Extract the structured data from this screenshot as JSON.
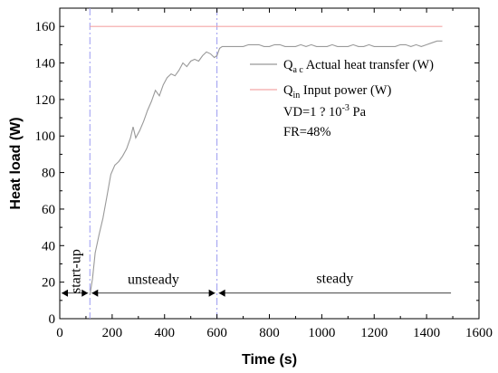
{
  "chart_data": {
    "type": "line",
    "xlabel": "Time (s)",
    "ylabel": "Heat load (W)",
    "xlim": [
      0,
      1600
    ],
    "ylim": [
      0,
      170
    ],
    "x_ticks": [
      0,
      200,
      400,
      600,
      800,
      1000,
      1200,
      1400,
      1600
    ],
    "y_ticks": [
      0,
      20,
      40,
      60,
      80,
      100,
      120,
      140,
      160
    ],
    "grid": false,
    "legend_position": "top-right",
    "series": [
      {
        "name": "Q_ac Actual heat transfer (W)",
        "color": "#999999",
        "x": [
          115,
          125,
          135,
          150,
          165,
          180,
          195,
          210,
          225,
          240,
          255,
          270,
          280,
          290,
          305,
          320,
          335,
          350,
          365,
          380,
          395,
          410,
          425,
          440,
          455,
          470,
          485,
          500,
          515,
          530,
          545,
          560,
          575,
          590,
          600,
          610,
          620,
          640,
          660,
          680,
          700,
          720,
          740,
          760,
          780,
          800,
          820,
          840,
          860,
          880,
          900,
          920,
          940,
          960,
          980,
          1000,
          1020,
          1040,
          1060,
          1080,
          1100,
          1120,
          1140,
          1160,
          1180,
          1200,
          1220,
          1240,
          1260,
          1280,
          1300,
          1320,
          1340,
          1360,
          1380,
          1400,
          1420,
          1440,
          1460
        ],
        "y": [
          13,
          22,
          36,
          46,
          55,
          67,
          79,
          84,
          86,
          89,
          93,
          99,
          105,
          99,
          103,
          108,
          114,
          119,
          125,
          122,
          128,
          132,
          134,
          133,
          136,
          140,
          138,
          141,
          142,
          141,
          144,
          146,
          145,
          143,
          144,
          148,
          149,
          149,
          149,
          149,
          149,
          150,
          150,
          150,
          149,
          149,
          150,
          150,
          149,
          149,
          149,
          150,
          149,
          150,
          149,
          149,
          149,
          150,
          149,
          149,
          149,
          150,
          149,
          149,
          150,
          149,
          149,
          149,
          149,
          149,
          150,
          150,
          149,
          150,
          149,
          150,
          151,
          152,
          152
        ]
      },
      {
        "name": "Q_in Input power (W)",
        "color": "#f4a6a6",
        "x": [
          115,
          1460
        ],
        "y": [
          160,
          160
        ]
      }
    ],
    "legend": {
      "actual": {
        "symbol": "Q",
        "sub": "a c",
        "text": " Actual heat transfer (W)"
      },
      "input": {
        "symbol": "Q",
        "sub": "in",
        "text": " Input power (W)"
      }
    },
    "annotations": {
      "vd_prefix": "VD=1 ? 10",
      "vd_exp": "-3",
      "vd_unit": " Pa",
      "fr": "FR=48%"
    },
    "phase_boundaries_x": [
      115,
      600
    ],
    "phase_arrow_y": 14,
    "phase_arrow_end_x": 1500,
    "phases": [
      {
        "label": "start-up",
        "x_from": 0,
        "x_to": 115
      },
      {
        "label": "unsteady",
        "x_from": 115,
        "x_to": 600
      },
      {
        "label": "steady",
        "x_from": 600,
        "x_to": 1500
      }
    ]
  }
}
